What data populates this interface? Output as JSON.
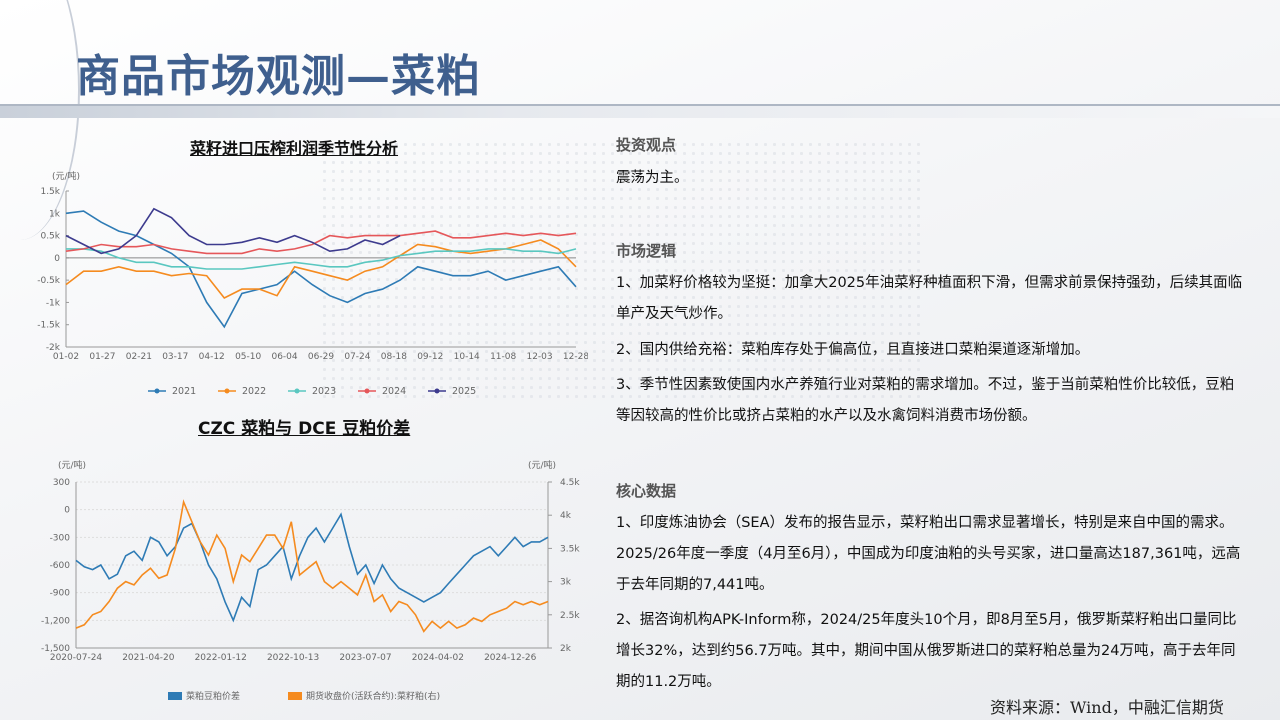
{
  "page_title": "商品市场观测—菜粕",
  "chart_data": [
    {
      "type": "line",
      "title": "菜籽进口压榨利润季节性分析",
      "unit": "(元/吨)",
      "x_ticks": [
        "01-02",
        "01-27",
        "02-21",
        "03-17",
        "04-12",
        "05-10",
        "06-04",
        "06-29",
        "07-24",
        "08-18",
        "09-12",
        "10-14",
        "11-08",
        "12-03",
        "12-28"
      ],
      "y_ticks": [
        "1.5k",
        "1k",
        "0.5k",
        "0",
        "-0.5k",
        "-1k",
        "-1.5k",
        "-2k"
      ],
      "ylim": [
        -2000,
        1500
      ],
      "legend_position": "bottom",
      "series": [
        {
          "name": "2021",
          "color": "#2e7bb5",
          "values": [
            1000,
            1050,
            800,
            600,
            500,
            300,
            100,
            -200,
            -1000,
            -1550,
            -800,
            -700,
            -600,
            -300,
            -600,
            -850,
            -1000,
            -800,
            -700,
            -500,
            -200,
            -300,
            -400,
            -400,
            -300,
            -500,
            -400,
            -300,
            -200,
            -650
          ]
        },
        {
          "name": "2022",
          "color": "#f58b1f",
          "values": [
            -600,
            -300,
            -300,
            -200,
            -300,
            -300,
            -400,
            -350,
            -400,
            -900,
            -700,
            -700,
            -850,
            -200,
            -300,
            -400,
            -500,
            -300,
            -200,
            50,
            300,
            250,
            150,
            100,
            150,
            200,
            300,
            400,
            200,
            -200
          ]
        },
        {
          "name": "2023",
          "color": "#5ac7c0",
          "values": [
            200,
            200,
            150,
            0,
            -100,
            -100,
            -200,
            -200,
            -250,
            -250,
            -250,
            -200,
            -150,
            -100,
            -150,
            -200,
            -200,
            -100,
            -50,
            50,
            100,
            150,
            150,
            150,
            200,
            200,
            150,
            150,
            100,
            200
          ]
        },
        {
          "name": "2024",
          "color": "#e5575a",
          "values": [
            150,
            200,
            300,
            250,
            250,
            300,
            200,
            150,
            100,
            100,
            100,
            200,
            150,
            200,
            300,
            500,
            450,
            500,
            500,
            500,
            550,
            600,
            450,
            450,
            500,
            550,
            500,
            550,
            500,
            550
          ]
        },
        {
          "name": "2025",
          "color": "#3d3b8e",
          "values": [
            500,
            300,
            100,
            200,
            500,
            1100,
            900,
            500,
            300,
            300,
            350,
            450,
            350,
            500,
            350,
            150,
            200,
            400,
            300,
            500
          ]
        }
      ]
    },
    {
      "type": "line",
      "title": "CZC 菜粕与 DCE 豆粕价差",
      "unit_left": "(元/吨)",
      "unit_right": "(元/吨)",
      "x_ticks": [
        "2020-07-24",
        "2021-04-20",
        "2022-01-12",
        "2022-10-13",
        "2023-07-07",
        "2024-04-02",
        "2024-12-26"
      ],
      "y_left_ticks": [
        "300",
        "0",
        "-300",
        "-600",
        "-900",
        "-1,200",
        "-1,500"
      ],
      "y_right_ticks": [
        "4.5k",
        "4k",
        "3.5k",
        "3k",
        "2.5k",
        "2k"
      ],
      "ylim_left": [
        -1500,
        300
      ],
      "ylim_right": [
        2000,
        4500
      ],
      "legend_position": "bottom",
      "series": [
        {
          "name": "菜粕豆粕价差",
          "color": "#2e7bb5",
          "axis": "left",
          "values": [
            -550,
            -620,
            -650,
            -600,
            -750,
            -700,
            -500,
            -450,
            -550,
            -300,
            -350,
            -500,
            -400,
            -200,
            -150,
            -350,
            -600,
            -750,
            -1000,
            -1200,
            -950,
            -1050,
            -650,
            -600,
            -500,
            -400,
            -750,
            -500,
            -300,
            -200,
            -350,
            -200,
            -50,
            -400,
            -700,
            -600,
            -800,
            -600,
            -750,
            -850,
            -900,
            -950,
            -1000,
            -950,
            -900,
            -800,
            -700,
            -600,
            -500,
            -450,
            -400,
            -500,
            -400,
            -300,
            -400,
            -350,
            -350,
            -300
          ]
        },
        {
          "name": "期货收盘价(活跃合约):菜籽粕(右)",
          "color": "#f58b1f",
          "axis": "right",
          "values": [
            2300,
            2350,
            2500,
            2550,
            2700,
            2900,
            3000,
            2950,
            3100,
            3200,
            3050,
            3100,
            3500,
            4200,
            3900,
            3600,
            3400,
            3700,
            3500,
            3000,
            3400,
            3300,
            3500,
            3700,
            3700,
            3500,
            3900,
            3100,
            3200,
            3300,
            3000,
            2900,
            3000,
            2900,
            2800,
            3100,
            2700,
            2800,
            2550,
            2700,
            2650,
            2500,
            2250,
            2400,
            2300,
            2400,
            2300,
            2350,
            2450,
            2400,
            2500,
            2550,
            2600,
            2700,
            2650,
            2700,
            2650,
            2700
          ]
        }
      ]
    }
  ],
  "sections": {
    "view_title": "投资观点",
    "view_text": "震荡为主。",
    "logic_title": "市场逻辑",
    "logic_items": [
      "1、加菜籽价格较为坚挺：加拿大2025年油菜籽种植面积下滑，但需求前景保持强劲，后续其面临单产及天气炒作。",
      "2、国内供给充裕：菜粕库存处于偏高位，且直接进口菜粕渠道逐渐增加。",
      "3、季节性因素致使国内水产养殖行业对菜粕的需求增加。不过，鉴于当前菜粕性价比较低，豆粕等因较高的性价比或挤占菜粕的水产以及水禽饲料消费市场份额。"
    ],
    "data_title": "核心数据",
    "data_items": [
      "1、印度炼油协会（SEA）发布的报告显示，菜籽粕出口需求显著增长，特别是来自中国的需求。2025/26年度一季度（4月至6月），中国成为印度油粕的头号买家，进口量高达187,361吨，远高于去年同期的7,441吨。",
      "2、据咨询机构APK-Inform称，2024/25年度头10个月，即8月至5月，俄罗斯菜籽粕出口量同比增长32%，达到约56.7万吨。其中，期间中国从俄罗斯进口的菜籽粕总量为24万吨，高于去年同期的11.2万吨。"
    ]
  },
  "source": "资料来源：Wind，中融汇信期货"
}
